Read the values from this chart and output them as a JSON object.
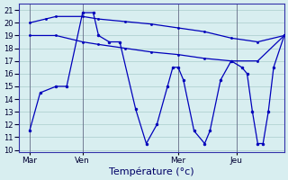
{
  "background_color": "#d8eef0",
  "grid_color": "#aacccc",
  "line_color": "#0000bb",
  "marker_color": "#0000bb",
  "xlabel": "Température (°c)",
  "xlabel_fontsize": 8,
  "yticks": [
    10,
    11,
    12,
    13,
    14,
    15,
    16,
    17,
    18,
    19,
    20,
    21
  ],
  "ylim": [
    9.8,
    21.5
  ],
  "xlim": [
    0,
    100
  ],
  "day_labels": [
    "Mar",
    "Ven",
    "Mer",
    "Jeu"
  ],
  "day_positions": [
    4,
    24,
    60,
    82
  ],
  "vline_positions": [
    4,
    24,
    60,
    82
  ],
  "line1_xy": [
    [
      4,
      20.0
    ],
    [
      10,
      20.3
    ],
    [
      14,
      20.5
    ],
    [
      24,
      20.5
    ],
    [
      30,
      20.3
    ],
    [
      40,
      20.1
    ],
    [
      50,
      19.9
    ],
    [
      60,
      19.6
    ],
    [
      70,
      19.3
    ],
    [
      80,
      18.8
    ],
    [
      90,
      18.5
    ],
    [
      100,
      19.0
    ]
  ],
  "line2_xy": [
    [
      4,
      19.0
    ],
    [
      14,
      19.0
    ],
    [
      24,
      18.5
    ],
    [
      30,
      18.3
    ],
    [
      40,
      18.0
    ],
    [
      50,
      17.7
    ],
    [
      60,
      17.5
    ],
    [
      70,
      17.2
    ],
    [
      80,
      17.0
    ],
    [
      90,
      17.0
    ],
    [
      100,
      19.0
    ]
  ],
  "line3_xy": [
    [
      4,
      11.5
    ],
    [
      8,
      14.5
    ],
    [
      14,
      15.0
    ],
    [
      18,
      15.0
    ],
    [
      24,
      20.8
    ],
    [
      28,
      20.8
    ],
    [
      30,
      19.0
    ],
    [
      34,
      18.5
    ],
    [
      38,
      18.5
    ],
    [
      44,
      13.2
    ],
    [
      48,
      10.5
    ],
    [
      52,
      12.0
    ],
    [
      56,
      15.0
    ],
    [
      58,
      16.5
    ],
    [
      60,
      16.5
    ],
    [
      62,
      15.5
    ],
    [
      66,
      11.5
    ],
    [
      70,
      10.5
    ],
    [
      72,
      11.5
    ],
    [
      76,
      15.5
    ],
    [
      80,
      17.0
    ],
    [
      84,
      16.5
    ],
    [
      86,
      16.0
    ],
    [
      88,
      13.0
    ],
    [
      90,
      10.5
    ],
    [
      92,
      10.5
    ],
    [
      94,
      13.0
    ],
    [
      96,
      16.5
    ],
    [
      100,
      19.0
    ]
  ]
}
